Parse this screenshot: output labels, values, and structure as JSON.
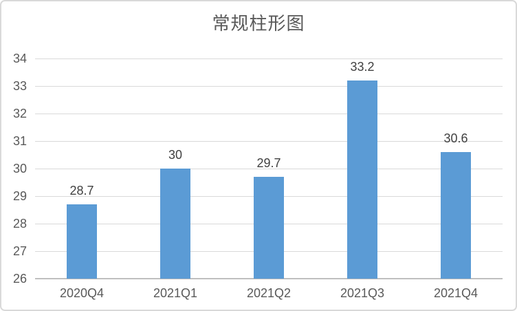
{
  "title": "常规柱形图",
  "colors": {
    "bar": "#5b9bd5",
    "gridline": "#d9d9d9",
    "axis_line": "#bfbfbf",
    "axis_label": "#595959",
    "data_label": "#404040",
    "title": "#595959",
    "frame_border": "#d9d9d9",
    "background": "#ffffff"
  },
  "chart_data": {
    "type": "bar",
    "title": "常规柱形图",
    "categories": [
      "2020Q4",
      "2021Q1",
      "2021Q2",
      "2021Q3",
      "2021Q4"
    ],
    "values": [
      28.7,
      30,
      29.7,
      33.2,
      30.6
    ],
    "data_labels": [
      "28.7",
      "30",
      "29.7",
      "33.2",
      "30.6"
    ],
    "yticks": [
      26,
      27,
      28,
      29,
      30,
      31,
      32,
      33,
      34
    ],
    "ylim": [
      26,
      34
    ],
    "xlabel": "",
    "ylabel": "",
    "grid": true,
    "legend": false,
    "data_labels_shown": true
  }
}
